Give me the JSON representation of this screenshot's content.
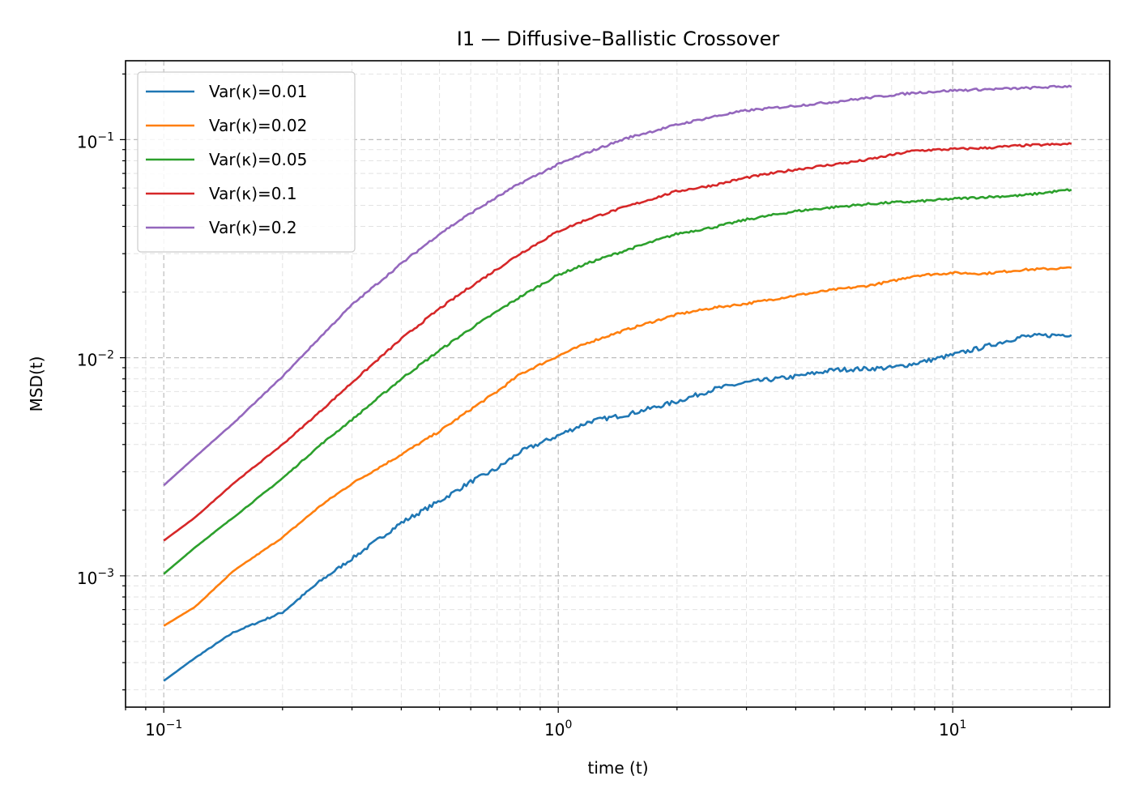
{
  "chart_data": {
    "type": "line",
    "title": "I1 — Diffusive–Ballistic Crossover",
    "xlabel": "time (t)",
    "ylabel": "MSD(t)",
    "xscale": "log",
    "yscale": "log",
    "xlim": [
      0.08,
      25
    ],
    "ylim": [
      0.00025,
      0.23
    ],
    "grid": "both",
    "legend_position": "upper-left",
    "x_major_ticks": [
      {
        "value": 0.1,
        "base": "10",
        "exp": "−1"
      },
      {
        "value": 1,
        "base": "10",
        "exp": "0"
      },
      {
        "value": 10,
        "base": "10",
        "exp": "1"
      }
    ],
    "y_major_ticks": [
      {
        "value": 0.001,
        "base": "10",
        "exp": "−3"
      },
      {
        "value": 0.01,
        "base": "10",
        "exp": "−2"
      },
      {
        "value": 0.1,
        "base": "10",
        "exp": "−1"
      }
    ],
    "x": [
      0.1,
      0.12,
      0.15,
      0.2,
      0.25,
      0.3,
      0.4,
      0.5,
      0.6,
      0.7,
      0.8,
      1.0,
      1.2,
      1.5,
      2.0,
      2.5,
      3.0,
      4.0,
      5.0,
      6.0,
      7.0,
      8.0,
      10.0,
      12.0,
      15.0,
      20.0
    ],
    "series": [
      {
        "name": "Var(κ)=0.01",
        "color": "#1f77b4",
        "values": [
          0.00033,
          0.00042,
          0.00055,
          0.00068,
          0.00095,
          0.0012,
          0.00175,
          0.0022,
          0.0027,
          0.0031,
          0.0037,
          0.0044,
          0.0051,
          0.0055,
          0.0063,
          0.0072,
          0.0077,
          0.0082,
          0.0088,
          0.0089,
          0.009,
          0.0094,
          0.0103,
          0.0112,
          0.0125,
          0.0128
        ]
      },
      {
        "name": "Var(κ)=0.02",
        "color": "#ff7f0e",
        "values": [
          0.00059,
          0.00072,
          0.00105,
          0.0015,
          0.0021,
          0.00265,
          0.0036,
          0.0046,
          0.0058,
          0.007,
          0.0084,
          0.0102,
          0.0118,
          0.0135,
          0.0158,
          0.017,
          0.0177,
          0.0193,
          0.0205,
          0.0213,
          0.0224,
          0.0238,
          0.0245,
          0.0243,
          0.0253,
          0.0258
        ]
      },
      {
        "name": "Var(κ)=0.05",
        "color": "#2ca02c",
        "values": [
          0.00102,
          0.00135,
          0.00185,
          0.0028,
          0.004,
          0.0052,
          0.008,
          0.0108,
          0.0136,
          0.0163,
          0.019,
          0.024,
          0.0273,
          0.0313,
          0.037,
          0.0398,
          0.043,
          0.047,
          0.049,
          0.0505,
          0.0515,
          0.052,
          0.0535,
          0.0545,
          0.0555,
          0.059
        ]
      },
      {
        "name": "Var(κ)=0.1",
        "color": "#d62728",
        "values": [
          0.00145,
          0.00185,
          0.00265,
          0.004,
          0.0057,
          0.0077,
          0.0122,
          0.0168,
          0.0212,
          0.0255,
          0.03,
          0.038,
          0.0435,
          0.0495,
          0.058,
          0.062,
          0.067,
          0.073,
          0.077,
          0.0805,
          0.085,
          0.089,
          0.0905,
          0.0915,
          0.094,
          0.0955
        ]
      },
      {
        "name": "Var(κ)=0.2",
        "color": "#9467bd",
        "values": [
          0.0026,
          0.0035,
          0.005,
          0.0082,
          0.0125,
          0.0175,
          0.027,
          0.037,
          0.046,
          0.0545,
          0.063,
          0.077,
          0.088,
          0.102,
          0.117,
          0.128,
          0.136,
          0.143,
          0.149,
          0.155,
          0.16,
          0.164,
          0.168,
          0.17,
          0.172,
          0.176
        ]
      }
    ]
  }
}
